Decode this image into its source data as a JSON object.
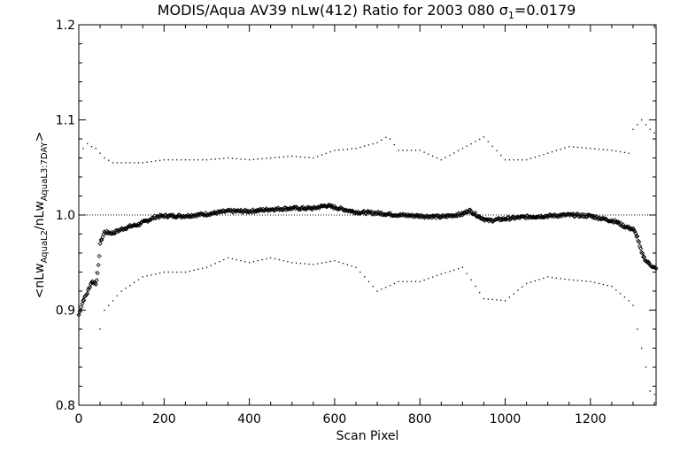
{
  "chart_data": {
    "type": "scatter",
    "title_main": "MODIS/Aqua AV39 nLw(412) Ratio for 2003 080 ",
    "title_sigma": "σ",
    "title_sigma_sub": "1",
    "title_sigma_value": "=0.0179",
    "xlabel": "Scan Pixel",
    "ylabel_parts": [
      "<nLw",
      "AquaL2",
      "/nLw",
      "AquaL3:7DAY",
      ">"
    ],
    "xlim": [
      0,
      1354
    ],
    "ylim": [
      0.8,
      1.2
    ],
    "x_ticks": [
      0,
      200,
      400,
      600,
      800,
      1000,
      1200
    ],
    "x_tick_labels": [
      "0",
      "200",
      "400",
      "600",
      "800",
      "1000",
      "1200"
    ],
    "y_ticks": [
      0.8,
      0.9,
      1.0,
      1.1,
      1.2
    ],
    "y_tick_labels": [
      "0.8",
      "0.9",
      "1.0",
      "1.1",
      "1.2"
    ],
    "reference_line": 1.0,
    "grid": false,
    "series": [
      {
        "marker": "diamond",
        "x": [
          0,
          10,
          20,
          30,
          40,
          45,
          50,
          60,
          80,
          100,
          120,
          140,
          160,
          180,
          200,
          250,
          300,
          350,
          400,
          450,
          500,
          550,
          580,
          600,
          650,
          700,
          750,
          800,
          850,
          900,
          915,
          940,
          960,
          1000,
          1050,
          1100,
          1150,
          1200,
          1230,
          1260,
          1280,
          1300,
          1310,
          1320,
          1330,
          1340,
          1354
        ],
        "y": [
          0.895,
          0.91,
          0.918,
          0.93,
          0.928,
          0.94,
          0.97,
          0.982,
          0.981,
          0.985,
          0.988,
          0.99,
          0.994,
          0.998,
          0.999,
          0.999,
          1.001,
          1.004,
          1.004,
          1.006,
          1.007,
          1.007,
          1.01,
          1.008,
          1.003,
          1.002,
          1.0,
          0.999,
          0.998,
          1.001,
          1.005,
          0.998,
          0.994,
          0.996,
          0.998,
          0.999,
          1.0,
          0.999,
          0.996,
          0.993,
          0.988,
          0.985,
          0.977,
          0.96,
          0.952,
          0.948,
          0.943
        ]
      },
      {
        "marker": "dot",
        "x": [
          0,
          10,
          20,
          30,
          40,
          60,
          80,
          100,
          150,
          200,
          250,
          300,
          350,
          400,
          450,
          500,
          550,
          600,
          650,
          700,
          725,
          750,
          800,
          850,
          900,
          950,
          1000,
          1050,
          1100,
          1150,
          1200,
          1250,
          1290,
          1300,
          1320,
          1340,
          1354
        ],
        "y": [
          1.06,
          1.07,
          1.075,
          1.072,
          1.07,
          1.06,
          1.055,
          1.055,
          1.055,
          1.058,
          1.058,
          1.058,
          1.06,
          1.058,
          1.06,
          1.062,
          1.06,
          1.068,
          1.07,
          1.076,
          1.083,
          1.068,
          1.068,
          1.058,
          1.07,
          1.082,
          1.058,
          1.058,
          1.065,
          1.072,
          1.07,
          1.068,
          1.065,
          1.09,
          1.1,
          1.09,
          1.085
        ]
      },
      {
        "marker": "dot",
        "x": [
          0,
          20,
          40,
          50,
          60,
          80,
          100,
          150,
          200,
          250,
          300,
          350,
          400,
          450,
          500,
          550,
          600,
          650,
          700,
          750,
          800,
          850,
          900,
          950,
          1000,
          1050,
          1100,
          1150,
          1200,
          1250,
          1290,
          1300,
          1310,
          1320,
          1330,
          1340,
          1354
        ],
        "y": [
          0.905,
          0.92,
          0.94,
          0.88,
          0.9,
          0.91,
          0.92,
          0.935,
          0.94,
          0.94,
          0.945,
          0.955,
          0.95,
          0.955,
          0.95,
          0.948,
          0.952,
          0.945,
          0.92,
          0.93,
          0.93,
          0.938,
          0.945,
          0.912,
          0.91,
          0.928,
          0.935,
          0.932,
          0.93,
          0.925,
          0.91,
          0.905,
          0.88,
          0.86,
          0.84,
          0.815,
          0.81
        ]
      }
    ]
  }
}
